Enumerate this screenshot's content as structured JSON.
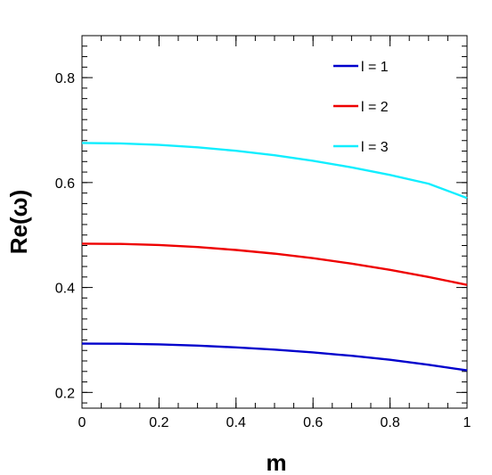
{
  "chart_data": {
    "type": "line",
    "xlabel": "m",
    "ylabel": "Re(ω)",
    "xlim": [
      0,
      1
    ],
    "ylim": [
      0.17,
      0.88
    ],
    "xticks": [
      0,
      0.2,
      0.4,
      0.6,
      0.8,
      1
    ],
    "xtick_labels": [
      "0",
      "0.2",
      "0.4",
      "0.6",
      "0.8",
      "1"
    ],
    "yticks": [
      0.2,
      0.4,
      0.6,
      0.8
    ],
    "ytick_labels": [
      "0.2",
      "0.4",
      "0.6",
      "0.8"
    ],
    "x_minor_step": 0.05,
    "y_minor_step": 0.02,
    "legend_position": "top-right",
    "grid": false,
    "series": [
      {
        "name": "l = 1",
        "color": "#0000cc",
        "x": [
          0,
          0.1,
          0.2,
          0.3,
          0.4,
          0.5,
          0.6,
          0.7,
          0.8,
          0.9,
          1.0
        ],
        "y": [
          0.293,
          0.2928,
          0.2915,
          0.2892,
          0.2858,
          0.2815,
          0.2762,
          0.2698,
          0.2622,
          0.2527,
          0.242
        ]
      },
      {
        "name": "l = 2",
        "color": "#ee0000",
        "x": [
          0,
          0.1,
          0.2,
          0.3,
          0.4,
          0.5,
          0.6,
          0.7,
          0.8,
          0.9,
          1.0
        ],
        "y": [
          0.4835,
          0.483,
          0.481,
          0.4772,
          0.4715,
          0.4645,
          0.4558,
          0.4455,
          0.4335,
          0.42,
          0.405
        ]
      },
      {
        "name": "l = 3",
        "color": "#11eeff",
        "x": [
          0,
          0.1,
          0.2,
          0.3,
          0.4,
          0.5,
          0.6,
          0.7,
          0.8,
          0.9,
          1.0
        ],
        "y": [
          0.6755,
          0.6745,
          0.6718,
          0.6672,
          0.6605,
          0.652,
          0.6415,
          0.629,
          0.6145,
          0.5978,
          0.5705
        ]
      }
    ]
  }
}
